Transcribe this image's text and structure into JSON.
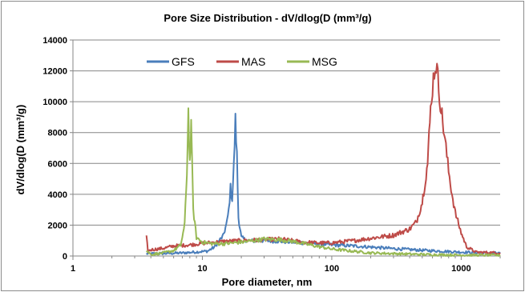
{
  "chart_data": {
    "type": "line",
    "title": "Pore Size Distribution - dV/dlog(D (mm³/g)",
    "xlabel": "Pore diameter, nm",
    "ylabel": "dV/dlog(D (mm³/g)",
    "x_scale": "log",
    "xlim": [
      1,
      2000
    ],
    "ylim": [
      0,
      14000
    ],
    "y_ticks": [
      0,
      2000,
      4000,
      6000,
      8000,
      10000,
      12000,
      14000
    ],
    "y_tick_labels": [
      "0",
      "2000",
      "4000",
      "6000",
      "8000",
      "10000",
      "12000",
      "14000"
    ],
    "x_ticks": [
      1,
      10,
      100,
      1000
    ],
    "x_tick_labels": [
      "1",
      "10",
      "100",
      "1000"
    ],
    "grid": "horizontal",
    "legend_position": "top-left inside plot",
    "series": [
      {
        "name": "GFS",
        "color": "#4a7ebb",
        "points": [
          [
            3.7,
            150
          ],
          [
            5,
            160
          ],
          [
            7,
            200
          ],
          [
            9,
            260
          ],
          [
            11,
            320
          ],
          [
            12.5,
            600
          ],
          [
            13.5,
            1000
          ],
          [
            14.5,
            1300
          ],
          [
            15.5,
            2200
          ],
          [
            16,
            3000
          ],
          [
            16.5,
            4400
          ],
          [
            17,
            3700
          ],
          [
            17.5,
            5800
          ],
          [
            18,
            8800
          ],
          [
            18.5,
            6500
          ],
          [
            19,
            2500
          ],
          [
            20,
            1200
          ],
          [
            22,
            1000
          ],
          [
            25,
            980
          ],
          [
            30,
            1000
          ],
          [
            40,
            950
          ],
          [
            60,
            850
          ],
          [
            80,
            780
          ],
          [
            100,
            720
          ],
          [
            150,
            650
          ],
          [
            200,
            580
          ],
          [
            300,
            480
          ],
          [
            500,
            370
          ],
          [
            800,
            290
          ],
          [
            1000,
            250
          ],
          [
            2000,
            180
          ]
        ]
      },
      {
        "name": "MAS",
        "color": "#be4b48",
        "points": [
          [
            3.7,
            1200
          ],
          [
            3.8,
            300
          ],
          [
            4,
            400
          ],
          [
            5,
            500
          ],
          [
            6,
            650
          ],
          [
            8,
            720
          ],
          [
            10,
            820
          ],
          [
            15,
            950
          ],
          [
            20,
            1000
          ],
          [
            30,
            1050
          ],
          [
            40,
            1100
          ],
          [
            60,
            900
          ],
          [
            80,
            850
          ],
          [
            100,
            850
          ],
          [
            150,
            1000
          ],
          [
            200,
            1150
          ],
          [
            300,
            1350
          ],
          [
            400,
            1750
          ],
          [
            450,
            2200
          ],
          [
            500,
            3500
          ],
          [
            550,
            6000
          ],
          [
            580,
            9500
          ],
          [
            600,
            11000
          ],
          [
            620,
            12000
          ],
          [
            640,
            12500
          ],
          [
            660,
            11500
          ],
          [
            700,
            9500
          ],
          [
            750,
            7500
          ],
          [
            800,
            5500
          ],
          [
            850,
            4000
          ],
          [
            900,
            2800
          ],
          [
            1000,
            1500
          ],
          [
            1100,
            600
          ],
          [
            1300,
            250
          ],
          [
            2000,
            200
          ]
        ]
      },
      {
        "name": "MSG",
        "color": "#98b954",
        "points": [
          [
            3.7,
            350
          ],
          [
            4,
            100
          ],
          [
            5,
            200
          ],
          [
            6,
            350
          ],
          [
            6.8,
            700
          ],
          [
            7.3,
            2000
          ],
          [
            7.6,
            5500
          ],
          [
            7.8,
            9400
          ],
          [
            8,
            6000
          ],
          [
            8.2,
            8300
          ],
          [
            8.5,
            3000
          ],
          [
            9,
            1200
          ],
          [
            10,
            900
          ],
          [
            12,
            800
          ],
          [
            15,
            800
          ],
          [
            20,
            900
          ],
          [
            25,
            1000
          ],
          [
            30,
            1100
          ],
          [
            40,
            1050
          ],
          [
            50,
            950
          ],
          [
            70,
            700
          ],
          [
            100,
            450
          ],
          [
            150,
            300
          ],
          [
            200,
            200
          ],
          [
            500,
            100
          ],
          [
            1000,
            60
          ],
          [
            2000,
            50
          ]
        ]
      }
    ]
  }
}
